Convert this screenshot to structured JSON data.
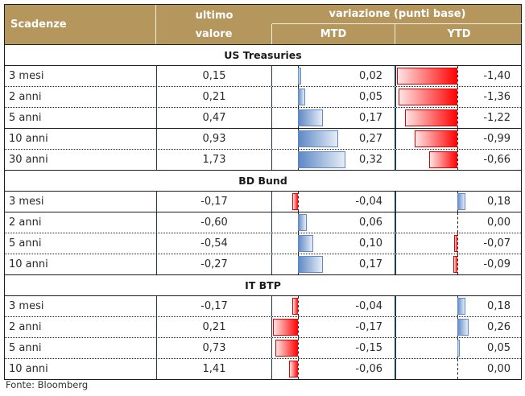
{
  "header": {
    "scadenze": "Scadenze",
    "ultimo_line1": "ultimo",
    "ultimo_line2": "valore",
    "variazione": "variazione (punti base)",
    "mtd": "MTD",
    "ytd": "YTD"
  },
  "sections": [
    {
      "title": "US Treasuries",
      "rows": [
        {
          "label": "3 mesi",
          "value": "0,15",
          "mtd": "0,02",
          "ytd": "-1,40",
          "mtd_num": 0.02,
          "ytd_num": -1.4
        },
        {
          "label": "2 anni",
          "value": "0,21",
          "mtd": "0,05",
          "ytd": "-1,36",
          "mtd_num": 0.05,
          "ytd_num": -1.36
        },
        {
          "label": "5 anni",
          "value": "0,47",
          "mtd": "0,17",
          "ytd": "-1,22",
          "mtd_num": 0.17,
          "ytd_num": -1.22
        },
        {
          "label": "10 anni",
          "value": "0,93",
          "mtd": "0,27",
          "ytd": "-0,99",
          "mtd_num": 0.27,
          "ytd_num": -0.99
        },
        {
          "label": "30 anni",
          "value": "1,73",
          "mtd": "0,32",
          "ytd": "-0,66",
          "mtd_num": 0.32,
          "ytd_num": -0.66
        }
      ]
    },
    {
      "title": "BD Bund",
      "rows": [
        {
          "label": "3 mesi",
          "value": "-0,17",
          "mtd": "-0,04",
          "ytd": "0,18",
          "mtd_num": -0.04,
          "ytd_num": 0.18
        },
        {
          "label": "2 anni",
          "value": "-0,60",
          "mtd": "0,06",
          "ytd": "0,00",
          "mtd_num": 0.06,
          "ytd_num": 0.0
        },
        {
          "label": "5 anni",
          "value": "-0,54",
          "mtd": "0,10",
          "ytd": "-0,07",
          "mtd_num": 0.1,
          "ytd_num": -0.07
        },
        {
          "label": "10 anni",
          "value": "-0,27",
          "mtd": "0,17",
          "ytd": "-0,09",
          "mtd_num": 0.17,
          "ytd_num": -0.09
        }
      ]
    },
    {
      "title": "IT BTP",
      "rows": [
        {
          "label": "3 mesi",
          "value": "-0,17",
          "mtd": "-0,04",
          "ytd": "0,18",
          "mtd_num": -0.04,
          "ytd_num": 0.18
        },
        {
          "label": "2 anni",
          "value": "0,21",
          "mtd": "-0,17",
          "ytd": "0,26",
          "mtd_num": -0.17,
          "ytd_num": 0.26
        },
        {
          "label": "5 anni",
          "value": "0,73",
          "mtd": "-0,15",
          "ytd": "0,05",
          "mtd_num": -0.15,
          "ytd_num": 0.05
        },
        {
          "label": "10 anni",
          "value": "1,41",
          "mtd": "-0,06",
          "ytd": "0,00",
          "mtd_num": -0.06,
          "ytd_num": 0.0
        }
      ]
    }
  ],
  "source": "Fonte: Bloomberg",
  "colors": {
    "header_bg": "#b5975e",
    "positive_bar": "#5b86c4",
    "negative_bar": "#ff0000"
  }
}
